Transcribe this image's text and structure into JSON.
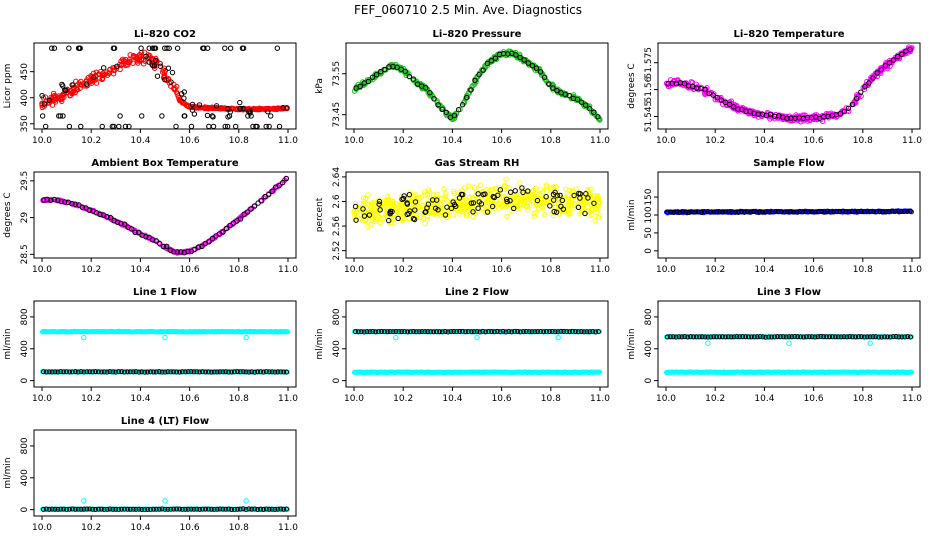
{
  "page": {
    "title": "FEF_060710  2.5 Min. Ave. Diagnostics"
  },
  "colors": {
    "black": "#000000",
    "red": "#ff0000",
    "green": "#1fbf1f",
    "magenta": "#ff00ff",
    "yellow": "#ffff00",
    "blue": "#0000ff",
    "cyan": "#00ffff"
  },
  "chart_data": [
    {
      "id": "co2",
      "type": "scatter",
      "title": "Li–820 CO2",
      "ylabel": "Licor ppm",
      "xlim": [
        10.0,
        11.0
      ],
      "xticks": [
        "10.0",
        "10.2",
        "10.4",
        "10.6",
        "10.8",
        "11.0"
      ],
      "ylim": [
        340,
        505
      ],
      "yticks": [
        350,
        400,
        450
      ],
      "series": [
        {
          "name": "cluster",
          "color": "red",
          "x": [
            10.0,
            10.04,
            10.08,
            10.12,
            10.16,
            10.2,
            10.24,
            10.28,
            10.32,
            10.36,
            10.4,
            10.44,
            10.48,
            10.5,
            10.52,
            10.54,
            10.56,
            10.6,
            10.7,
            10.8,
            10.9,
            11.0
          ],
          "y": [
            390,
            395,
            405,
            415,
            425,
            435,
            440,
            452,
            462,
            472,
            478,
            472,
            462,
            445,
            430,
            420,
            395,
            382,
            380,
            378,
            378,
            380
          ]
        },
        {
          "name": "ave",
          "color": "black",
          "x": [
            10.0,
            10.05,
            10.1,
            10.15,
            10.2,
            10.25,
            10.3,
            10.35,
            10.4,
            10.45,
            10.5,
            10.55,
            10.6,
            10.7,
            10.8,
            10.9,
            11.0
          ],
          "y": [
            390,
            400,
            410,
            425,
            435,
            445,
            460,
            475,
            480,
            470,
            450,
            420,
            385,
            380,
            378,
            378,
            380
          ]
        }
      ]
    },
    {
      "id": "pressure",
      "type": "scatter",
      "title": "Li–820 Pressure",
      "ylabel": "kPa",
      "xlim": [
        10.0,
        11.0
      ],
      "xticks": [
        "10.0",
        "10.2",
        "10.4",
        "10.6",
        "10.8",
        "11.0"
      ],
      "ylim": [
        73.415,
        73.625
      ],
      "yticks": [
        73.45,
        73.55
      ],
      "series": [
        {
          "name": "cluster",
          "color": "green",
          "x": [
            10.0,
            10.05,
            10.1,
            10.15,
            10.2,
            10.25,
            10.3,
            10.35,
            10.4,
            10.45,
            10.5,
            10.55,
            10.6,
            10.65,
            10.7,
            10.75,
            10.8,
            10.85,
            10.9,
            10.95,
            11.0
          ],
          "y": [
            73.51,
            73.53,
            73.55,
            73.57,
            73.56,
            73.53,
            73.51,
            73.47,
            73.44,
            73.48,
            73.54,
            73.58,
            73.6,
            73.6,
            73.58,
            73.56,
            73.52,
            73.5,
            73.49,
            73.47,
            73.44
          ]
        },
        {
          "name": "ave",
          "color": "black",
          "x": [
            10.0,
            10.05,
            10.1,
            10.15,
            10.2,
            10.25,
            10.3,
            10.35,
            10.4,
            10.45,
            10.5,
            10.55,
            10.6,
            10.65,
            10.7,
            10.75,
            10.8,
            10.85,
            10.9,
            10.95,
            11.0
          ],
          "y": [
            73.51,
            73.53,
            73.55,
            73.57,
            73.56,
            73.53,
            73.51,
            73.47,
            73.44,
            73.48,
            73.54,
            73.58,
            73.6,
            73.6,
            73.58,
            73.56,
            73.52,
            73.5,
            73.49,
            73.47,
            73.44
          ]
        }
      ]
    },
    {
      "id": "temperature",
      "type": "scatter",
      "title": "Li–820 Temperature",
      "ylabel": "degrees C",
      "xlim": [
        10.0,
        11.0
      ],
      "xticks": [
        "10.0",
        "10.2",
        "10.4",
        "10.6",
        "10.8",
        "11.0"
      ],
      "ylim": [
        51.538,
        51.586
      ],
      "yticks": [
        51.545,
        51.56,
        51.575
      ],
      "series": [
        {
          "name": "cluster",
          "color": "magenta",
          "x": [
            10.0,
            10.05,
            10.1,
            10.15,
            10.2,
            10.25,
            10.3,
            10.35,
            10.4,
            10.45,
            10.5,
            10.55,
            10.6,
            10.65,
            10.7,
            10.75,
            10.8,
            10.85,
            10.9,
            10.95,
            11.0
          ],
          "y": [
            51.563,
            51.564,
            51.562,
            51.56,
            51.556,
            51.552,
            51.549,
            51.547,
            51.546,
            51.545,
            51.544,
            51.544,
            51.544,
            51.545,
            51.546,
            51.55,
            51.56,
            51.568,
            51.574,
            51.579,
            51.583
          ]
        },
        {
          "name": "ave",
          "color": "black",
          "x": [
            10.0,
            10.05,
            10.1,
            10.15,
            10.2,
            10.25,
            10.3,
            10.35,
            10.4,
            10.45,
            10.5,
            10.55,
            10.6,
            10.65,
            10.7,
            10.75,
            10.8,
            10.85,
            10.9,
            10.95,
            11.0
          ],
          "y": [
            51.563,
            51.564,
            51.562,
            51.56,
            51.556,
            51.552,
            51.549,
            51.547,
            51.546,
            51.545,
            51.544,
            51.544,
            51.544,
            51.545,
            51.546,
            51.55,
            51.56,
            51.568,
            51.574,
            51.579,
            51.583
          ]
        }
      ]
    },
    {
      "id": "ambient",
      "type": "scatter",
      "title": "Ambient Box Temperature",
      "ylabel": "degrees C",
      "xlim": [
        10.0,
        11.0
      ],
      "xticks": [
        "10.0",
        "10.2",
        "10.4",
        "10.6",
        "10.8",
        "11.0"
      ],
      "ylim": [
        28.45,
        29.62
      ],
      "yticks": [
        28.5,
        29.0,
        29.5
      ],
      "series": [
        {
          "name": "cluster",
          "color": "magenta",
          "x": [
            10.0,
            10.05,
            10.1,
            10.15,
            10.2,
            10.25,
            10.3,
            10.35,
            10.4,
            10.45,
            10.5,
            10.55,
            10.6,
            10.65,
            10.7,
            10.75,
            10.8,
            10.85,
            10.9,
            10.95,
            11.0
          ],
          "y": [
            29.24,
            29.24,
            29.21,
            29.16,
            29.1,
            29.03,
            28.95,
            28.87,
            28.78,
            28.7,
            28.6,
            28.52,
            28.54,
            28.62,
            28.72,
            28.85,
            28.98,
            29.12,
            29.26,
            29.4,
            29.55
          ]
        },
        {
          "name": "ave",
          "color": "black",
          "x": [
            10.0,
            10.05,
            10.1,
            10.15,
            10.2,
            10.25,
            10.3,
            10.35,
            10.4,
            10.45,
            10.5,
            10.55,
            10.6,
            10.65,
            10.7,
            10.75,
            10.8,
            10.85,
            10.9,
            10.95,
            11.0
          ],
          "y": [
            29.24,
            29.24,
            29.21,
            29.16,
            29.1,
            29.03,
            28.95,
            28.87,
            28.78,
            28.7,
            28.6,
            28.52,
            28.54,
            28.62,
            28.72,
            28.85,
            28.98,
            29.12,
            29.26,
            29.4,
            29.55
          ]
        }
      ]
    },
    {
      "id": "rh",
      "type": "scatter",
      "title": "Gas Stream RH",
      "ylabel": "percent",
      "xlim": [
        10.0,
        11.0
      ],
      "xticks": [
        "10.0",
        "10.2",
        "10.4",
        "10.6",
        "10.8",
        "11.0"
      ],
      "ylim": [
        2.508,
        2.648
      ],
      "yticks": [
        2.52,
        2.56,
        2.6,
        2.64
      ],
      "series": [
        {
          "name": "cluster",
          "color": "yellow",
          "x": [
            10.0,
            10.1,
            10.2,
            10.3,
            10.4,
            10.5,
            10.6,
            10.7,
            10.8,
            10.9,
            11.0
          ],
          "y": [
            2.58,
            2.585,
            2.59,
            2.59,
            2.595,
            2.6,
            2.605,
            2.605,
            2.6,
            2.6,
            2.6
          ]
        },
        {
          "name": "ave",
          "color": "black",
          "x": [
            10.0,
            10.1,
            10.2,
            10.3,
            10.4,
            10.5,
            10.6,
            10.7,
            10.8,
            10.9,
            11.0
          ],
          "y": [
            2.58,
            2.585,
            2.59,
            2.59,
            2.595,
            2.6,
            2.605,
            2.605,
            2.6,
            2.6,
            2.6
          ]
        }
      ]
    },
    {
      "id": "sample",
      "type": "scatter",
      "title": "Sample Flow",
      "ylabel": "ml/min",
      "xlim": [
        10.0,
        11.0
      ],
      "xticks": [
        "10.0",
        "10.2",
        "10.4",
        "10.6",
        "10.8",
        "11.0"
      ],
      "ylim": [
        -20,
        220
      ],
      "yticks": [
        0,
        50,
        100,
        150
      ],
      "series": [
        {
          "name": "cluster",
          "color": "blue",
          "x": [
            10.0,
            11.0
          ],
          "y": [
            108,
            110
          ]
        },
        {
          "name": "ave",
          "color": "black",
          "x": [
            10.0,
            11.0
          ],
          "y": [
            108,
            110
          ]
        }
      ]
    },
    {
      "id": "line1",
      "type": "scatter",
      "title": "Line 1 Flow",
      "ylabel": "ml/min",
      "xlim": [
        10.0,
        11.0
      ],
      "xticks": [
        "10.0",
        "10.2",
        "10.4",
        "10.6",
        "10.8",
        "11.0"
      ],
      "ylim": [
        -80,
        1000
      ],
      "yticks": [
        0,
        400,
        800
      ],
      "series": [
        {
          "name": "high",
          "color": "cyan",
          "x": [
            10.0,
            11.0
          ],
          "y": [
            615,
            615
          ],
          "dips": [
            10.17,
            10.5,
            10.83
          ],
          "dip_value": 540
        },
        {
          "name": "low",
          "color": "cyan",
          "x": [
            10.0,
            11.0
          ],
          "y": [
            110,
            110
          ]
        },
        {
          "name": "ave",
          "color": "black",
          "x": [
            10.0,
            11.0
          ],
          "y": [
            110,
            110
          ]
        }
      ]
    },
    {
      "id": "line2",
      "type": "scatter",
      "title": "Line 2 Flow",
      "ylabel": "ml/min",
      "xlim": [
        10.0,
        11.0
      ],
      "xticks": [
        "10.0",
        "10.2",
        "10.4",
        "10.6",
        "10.8",
        "11.0"
      ],
      "ylim": [
        -80,
        1000
      ],
      "yticks": [
        0,
        400,
        800
      ],
      "series": [
        {
          "name": "high",
          "color": "cyan",
          "x": [
            10.0,
            11.0
          ],
          "y": [
            615,
            615
          ],
          "dips": [
            10.17,
            10.5,
            10.83
          ],
          "dip_value": 540
        },
        {
          "name": "low",
          "color": "cyan",
          "x": [
            10.0,
            11.0
          ],
          "y": [
            105,
            105
          ]
        },
        {
          "name": "ave",
          "color": "black",
          "x": [
            10.0,
            11.0
          ],
          "y": [
            615,
            615
          ]
        }
      ]
    },
    {
      "id": "line3",
      "type": "scatter",
      "title": "Line 3 Flow",
      "ylabel": "ml/min",
      "xlim": [
        10.0,
        11.0
      ],
      "xticks": [
        "10.0",
        "10.2",
        "10.4",
        "10.6",
        "10.8",
        "11.0"
      ],
      "ylim": [
        -80,
        1000
      ],
      "yticks": [
        0,
        400,
        800
      ],
      "series": [
        {
          "name": "high",
          "color": "cyan",
          "x": [
            10.0,
            11.0
          ],
          "y": [
            550,
            550
          ],
          "dips": [
            10.17,
            10.5,
            10.83
          ],
          "dip_value": 470
        },
        {
          "name": "low",
          "color": "cyan",
          "x": [
            10.0,
            11.0
          ],
          "y": [
            105,
            105
          ]
        },
        {
          "name": "ave",
          "color": "black",
          "x": [
            10.0,
            11.0
          ],
          "y": [
            550,
            550
          ]
        }
      ]
    },
    {
      "id": "line4",
      "type": "scatter",
      "title": "Line 4 (LT) Flow",
      "ylabel": "ml/min",
      "xlim": [
        10.0,
        11.0
      ],
      "xticks": [
        "10.0",
        "10.2",
        "10.4",
        "10.6",
        "10.8",
        "11.0"
      ],
      "ylim": [
        -80,
        1000
      ],
      "yticks": [
        0,
        400,
        800
      ],
      "series": [
        {
          "name": "base",
          "color": "cyan",
          "x": [
            10.0,
            11.0
          ],
          "y": [
            5,
            5
          ],
          "spikes": [
            10.17,
            10.5,
            10.83
          ],
          "spike_value": 110
        },
        {
          "name": "ave",
          "color": "black",
          "x": [
            10.0,
            11.0
          ],
          "y": [
            5,
            5
          ]
        }
      ]
    }
  ]
}
